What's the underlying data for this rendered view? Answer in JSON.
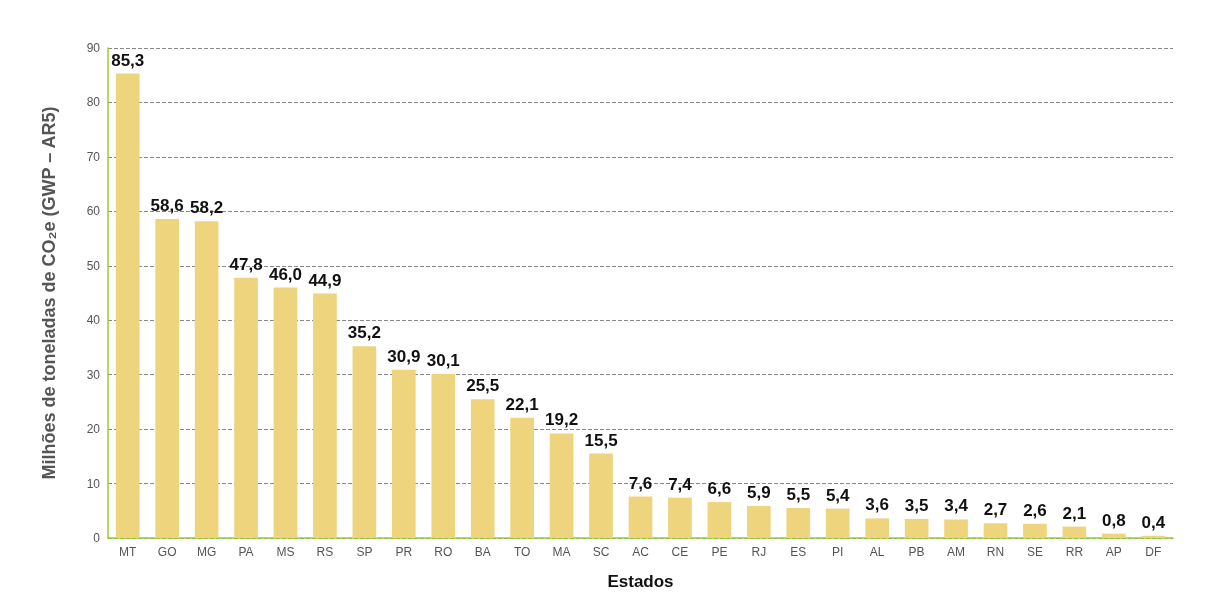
{
  "chart_data": {
    "type": "bar",
    "xlabel": "Estados",
    "ylabel": "Milhões de toneladas de CO₂e (GWP – AR5)",
    "categories": [
      "MT",
      "GO",
      "MG",
      "PA",
      "MS",
      "RS",
      "SP",
      "PR",
      "RO",
      "BA",
      "TO",
      "MA",
      "SC",
      "AC",
      "CE",
      "PE",
      "RJ",
      "ES",
      "PI",
      "AL",
      "PB",
      "AM",
      "RN",
      "SE",
      "RR",
      "AP",
      "DF"
    ],
    "values": [
      85.3,
      58.6,
      58.2,
      47.8,
      46.0,
      44.9,
      35.2,
      30.9,
      30.1,
      25.5,
      22.1,
      19.2,
      15.5,
      7.6,
      7.4,
      6.6,
      5.9,
      5.5,
      5.4,
      3.6,
      3.5,
      3.4,
      2.7,
      2.6,
      2.1,
      0.8,
      0.4
    ],
    "value_labels": [
      "85,3",
      "58,6",
      "58,2",
      "47,8",
      "46,0",
      "44,9",
      "35,2",
      "30,9",
      "30,1",
      "25,5",
      "22,1",
      "19,2",
      "15,5",
      "7,6",
      "7,4",
      "6,6",
      "5,9",
      "5,5",
      "5,4",
      "3,6",
      "3,5",
      "3,4",
      "2,7",
      "2,6",
      "2,1",
      "0,8",
      "0,4"
    ],
    "color": "#eed47c",
    "ylim": [
      0,
      90
    ],
    "yticks": [
      0,
      10,
      20,
      30,
      40,
      50,
      60,
      70,
      80,
      90
    ],
    "grid": "y"
  }
}
